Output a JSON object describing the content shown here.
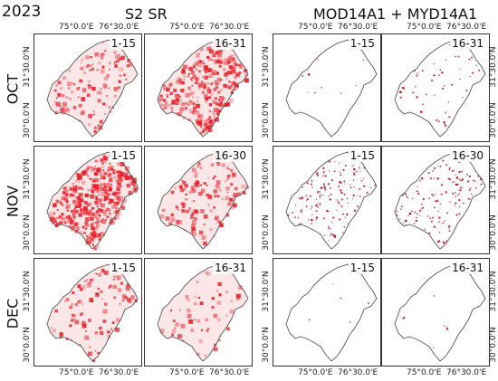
{
  "year": "2023",
  "groups": [
    {
      "title": "S2 SR"
    },
    {
      "title": "MOD14A1 + MYD14A1"
    }
  ],
  "rows": [
    {
      "label": "OCT",
      "periods": [
        "1-15",
        "16-31"
      ]
    },
    {
      "label": "NOV",
      "periods": [
        "1-15",
        "16-30"
      ]
    },
    {
      "label": "DEC",
      "periods": [
        "1-15",
        "16-31"
      ]
    }
  ],
  "axes": {
    "lon_ticks": [
      "75°0.0'E",
      "76°30.0'E"
    ],
    "lat_ticks": [
      "31°30.0'N",
      "30°0.0'N"
    ]
  },
  "colors": {
    "boundary": "#555555",
    "s2_fill": "#e8202a",
    "modis_dot": "#b4001e"
  },
  "intensity": {
    "s2_sr": [
      [
        0.22,
        0.62
      ],
      [
        0.8,
        0.26
      ],
      [
        0.14,
        0.06
      ]
    ],
    "modis": [
      [
        0.02,
        0.15
      ],
      [
        0.45,
        0.38
      ],
      [
        0.01,
        0.02
      ]
    ]
  }
}
